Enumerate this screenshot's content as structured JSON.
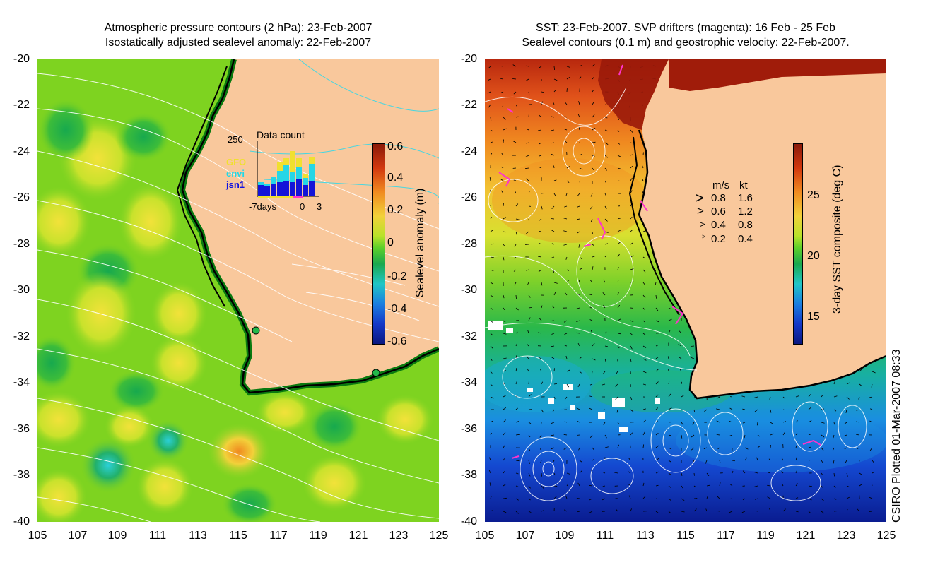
{
  "left_panel": {
    "title_line1": "Atmospheric pressure contours (2 hPa): 23-Feb-2007",
    "title_line2": "Isostatically adjusted sealevel anomaly: 22-Feb-2007",
    "colorbar": {
      "label": "Sealevel anomaly (m)",
      "ticks": [
        "0.6",
        "0.4",
        "0.2",
        "0",
        "-0.2",
        "-0.4",
        "-0.6"
      ]
    },
    "inset": {
      "title": "Data count",
      "ymax_label": "250",
      "series": [
        "GFO",
        "envi",
        "jsn1"
      ],
      "x_labels": [
        "-7days",
        "0",
        "3"
      ]
    }
  },
  "right_panel": {
    "title_line1": "SST: 23-Feb-2007. SVP drifters (magenta): 16 Feb - 25 Feb",
    "title_line2": "Sealevel contours (0.1 m) and geostrophic velocity: 22-Feb-2007.",
    "colorbar": {
      "label": "3-day SST composite (deg C)",
      "ticks": [
        "25",
        "20",
        "15"
      ]
    },
    "velocity_legend": {
      "header_ms": "m/s",
      "header_kt": "kt",
      "rows": [
        {
          "ms": "0.8",
          "kt": "1.6"
        },
        {
          "ms": "0.6",
          "kt": "1.2"
        },
        {
          "ms": "0.4",
          "kt": "0.8"
        },
        {
          "ms": "0.2",
          "kt": "0.4"
        }
      ]
    }
  },
  "axes": {
    "y_ticks": [
      "-20",
      "-22",
      "-24",
      "-26",
      "-28",
      "-30",
      "-32",
      "-34",
      "-36",
      "-38",
      "-40"
    ],
    "x_ticks": [
      "105",
      "107",
      "109",
      "111",
      "113",
      "115",
      "117",
      "119",
      "121",
      "123",
      "125"
    ]
  },
  "credit": "CSIRO Plotted 01-Mar-2007 08:33",
  "colors": {
    "land": "#f9c89c",
    "ocean_anomaly": "#7ed320",
    "coast": "#000000",
    "pressure_contour": "#ffffff",
    "drifter": "#ff33cc"
  }
}
